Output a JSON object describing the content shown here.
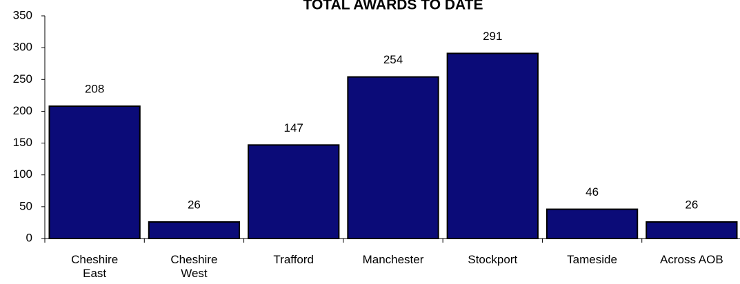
{
  "chart_data": {
    "type": "bar",
    "title": "TOTAL AWARDS TO DATE",
    "categories": [
      "Cheshire East",
      "Cheshire West",
      "Trafford",
      "Manchester",
      "Stockport",
      "Tameside",
      "Across AOB"
    ],
    "values": [
      208,
      26,
      147,
      254,
      291,
      46,
      26
    ],
    "color": "#0b0b78",
    "ylim": [
      0,
      350
    ],
    "yticks": [
      0,
      50,
      100,
      150,
      200,
      250,
      300,
      350
    ],
    "grid": false
  }
}
